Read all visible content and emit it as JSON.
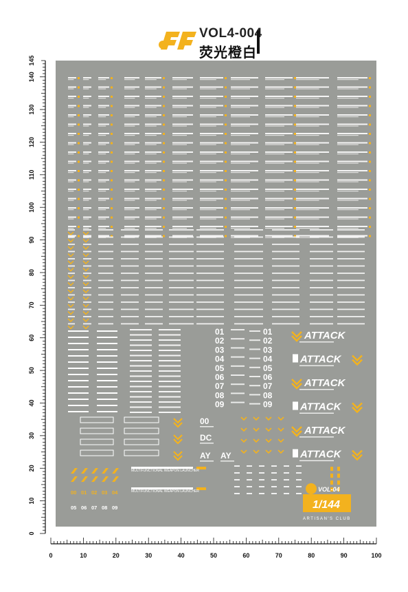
{
  "header": {
    "logo_icon": "se-logo-icon",
    "vol_code": "VOL4-004",
    "color_name": "荧光橙白"
  },
  "colors": {
    "sheet": "#9a9c98",
    "accent": "#f3b21e",
    "decal_white": "#ffffff",
    "ruler": "#111111"
  },
  "ruler": {
    "y_labels": [
      "0",
      "10",
      "20",
      "30",
      "40",
      "50",
      "60",
      "70",
      "80",
      "90",
      "100",
      "110",
      "120",
      "130",
      "140",
      "145"
    ],
    "x_labels": [
      "0",
      "10",
      "20",
      "30",
      "40",
      "50",
      "60",
      "70",
      "80",
      "90",
      "100"
    ]
  },
  "decals": {
    "attack_words": [
      "ATTACK",
      "ATTACK",
      "ATTACK",
      "ATTACK",
      "ATTACK",
      "ATTACK"
    ],
    "numbers": [
      "01",
      "02",
      "03",
      "04",
      "05",
      "06",
      "07",
      "08",
      "09"
    ],
    "codes": [
      "00",
      "DC",
      "AY",
      "AY"
    ],
    "small_numbers_row1": [
      "00",
      "01",
      "02",
      "03",
      "04"
    ],
    "small_numbers_row2": [
      "05",
      "06",
      "07",
      "08",
      "09"
    ],
    "launcher_text": "MULTIFUNCTIONAL WEAPON LAUNCHER",
    "vol_badge": "VOL-04",
    "scale_badge": "1/144",
    "club": "ARTISAN'S CLUB"
  }
}
